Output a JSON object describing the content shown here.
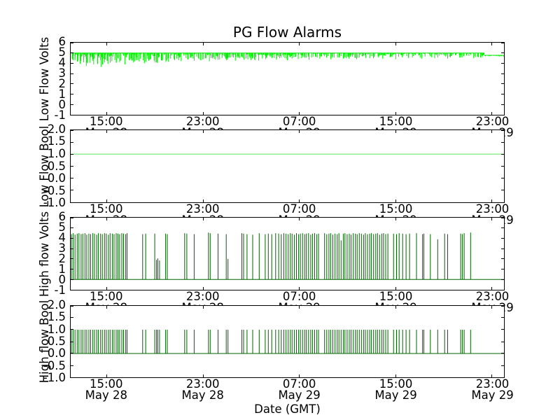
{
  "title": "PG Flow Alarms",
  "xlabel": "Date (GMT)",
  "colors": {
    "low_flow_volts": "#00ee00",
    "low_flow_bool": "#90ee90",
    "high_flow": "#006400",
    "frame": "#000000",
    "background": "#ffffff"
  },
  "xticks": {
    "pcts": [
      8.34,
      30.55,
      52.76,
      74.97,
      97.19
    ],
    "times": [
      "15:00",
      "23:00",
      "07:00",
      "15:00",
      "23:00"
    ],
    "dates": [
      "May 28",
      "May 28",
      "May 29",
      "May 29",
      "May 29"
    ]
  },
  "chart_data": [
    {
      "type": "line",
      "name": "low-flow-volts",
      "ylabel": "Low Flow Volts",
      "ylim": [
        -1,
        6
      ],
      "yticks": [
        "6",
        "5",
        "4",
        "3",
        "2",
        "1",
        "0",
        "-1"
      ],
      "color": "#00ee00",
      "kind": "noisy",
      "base": 5.0,
      "segments": [
        {
          "from": 0,
          "to": 2,
          "base": 5.0,
          "min": 4.2,
          "n": 14
        },
        {
          "from": 2,
          "to": 8,
          "base": 5.0,
          "min": 3.8,
          "n": 40
        },
        {
          "from": 8,
          "to": 25,
          "base": 5.0,
          "min": 4.05,
          "n": 110
        },
        {
          "from": 25,
          "to": 45,
          "base": 5.0,
          "min": 4.25,
          "n": 120
        },
        {
          "from": 45,
          "to": 70,
          "base": 5.0,
          "min": 4.45,
          "n": 150
        },
        {
          "from": 70,
          "to": 95.5,
          "base": 5.0,
          "min": 4.55,
          "n": 150
        },
        {
          "from": 95.5,
          "to": 100,
          "base": 4.78,
          "min": 4.66,
          "n": 26
        }
      ],
      "deep_dips": [
        [
          0.5,
          4.35
        ],
        [
          1.0,
          4.3
        ],
        [
          1.5,
          4.15
        ],
        [
          2.2,
          3.95
        ],
        [
          3.0,
          4.1
        ],
        [
          3.6,
          3.75
        ],
        [
          4.4,
          4.05
        ],
        [
          5.3,
          3.9
        ],
        [
          6.2,
          4.2
        ],
        [
          7.0,
          3.65
        ],
        [
          7.8,
          4.1
        ],
        [
          8.6,
          3.95
        ],
        [
          9.5,
          4.2
        ],
        [
          10.5,
          4.05
        ],
        [
          11.5,
          4.25
        ],
        [
          12.5,
          3.9
        ],
        [
          13.5,
          4.3
        ],
        [
          14.5,
          4.1
        ],
        [
          15.8,
          4.2
        ],
        [
          17.0,
          4.0
        ],
        [
          18.0,
          4.25
        ],
        [
          19.5,
          4.1
        ],
        [
          21.0,
          4.3
        ],
        [
          22.5,
          4.15
        ],
        [
          24.0,
          4.3
        ],
        [
          25.5,
          4.2
        ],
        [
          27.0,
          4.35
        ],
        [
          28.5,
          4.25
        ],
        [
          30.0,
          4.3
        ],
        [
          32.0,
          4.2
        ],
        [
          34.0,
          4.35
        ],
        [
          36.0,
          4.3
        ],
        [
          38.0,
          4.25
        ],
        [
          40.0,
          4.35
        ],
        [
          42.5,
          4.3
        ],
        [
          45.0,
          4.4
        ],
        [
          47.5,
          4.35
        ],
        [
          50.0,
          4.3
        ],
        [
          52.5,
          4.4
        ],
        [
          55.0,
          4.35
        ],
        [
          57.5,
          4.45
        ],
        [
          60.0,
          4.4
        ],
        [
          63.0,
          4.45
        ],
        [
          66.0,
          4.4
        ],
        [
          69.0,
          4.5
        ],
        [
          72.0,
          4.45
        ],
        [
          75.0,
          4.4
        ],
        [
          78.0,
          4.5
        ],
        [
          81.0,
          4.45
        ],
        [
          84.0,
          4.5
        ],
        [
          87.0,
          4.45
        ],
        [
          90.0,
          4.55
        ],
        [
          93.0,
          4.5
        ],
        [
          95.0,
          4.6
        ]
      ]
    },
    {
      "type": "line",
      "name": "low-flow-bool",
      "ylabel": "Low Flow Bool",
      "ylim": [
        -1,
        2
      ],
      "yticks": [
        "2.0",
        "1.5",
        "1.0",
        "0.5",
        "0.0",
        "-0.5",
        "-1.0"
      ],
      "color": "#90ee90",
      "kind": "hline",
      "value": 1.0,
      "lw": 1.5
    },
    {
      "type": "line",
      "name": "high-flow-volts",
      "ylabel": "High flow Volts",
      "ylim": [
        -1,
        6
      ],
      "yticks": [
        "6",
        "5",
        "4",
        "3",
        "2",
        "1",
        "0",
        "-1"
      ],
      "color": "#006400",
      "kind": "spikes",
      "baseline": 0,
      "spikes": [
        [
          0.2,
          4.4
        ],
        [
          0.6,
          4.5
        ],
        [
          1.0,
          4.35
        ],
        [
          1.5,
          4.45
        ],
        [
          1.9,
          4.5
        ],
        [
          2.4,
          4.4
        ],
        [
          2.8,
          4.45
        ],
        [
          3.3,
          4.5
        ],
        [
          3.7,
          4.35
        ],
        [
          4.2,
          4.45
        ],
        [
          4.6,
          4.4
        ],
        [
          5.1,
          4.5
        ],
        [
          5.5,
          4.45
        ],
        [
          6.0,
          4.35
        ],
        [
          6.4,
          4.5
        ],
        [
          6.9,
          4.45
        ],
        [
          7.3,
          4.4
        ],
        [
          7.8,
          4.5
        ],
        [
          8.2,
          4.45
        ],
        [
          8.7,
          4.35
        ],
        [
          9.1,
          4.5
        ],
        [
          9.6,
          4.45
        ],
        [
          10.0,
          4.4
        ],
        [
          10.5,
          4.5
        ],
        [
          10.9,
          4.45
        ],
        [
          11.3,
          4.4
        ],
        [
          11.8,
          4.5
        ],
        [
          12.2,
          4.45
        ],
        [
          12.7,
          4.4
        ],
        [
          13.0,
          4.5
        ],
        [
          16.6,
          4.4
        ],
        [
          17.3,
          4.45
        ],
        [
          19.4,
          4.45
        ],
        [
          19.8,
          1.9
        ],
        [
          20.1,
          2.05
        ],
        [
          20.5,
          1.85
        ],
        [
          21.9,
          4.45
        ],
        [
          22.3,
          4.4
        ],
        [
          26.3,
          4.5
        ],
        [
          26.8,
          4.45
        ],
        [
          28.5,
          4.4
        ],
        [
          31.8,
          4.55
        ],
        [
          32.2,
          4.5
        ],
        [
          34.0,
          4.45
        ],
        [
          35.9,
          4.4
        ],
        [
          36.3,
          2.0
        ],
        [
          39.5,
          4.5
        ],
        [
          39.9,
          4.45
        ],
        [
          40.7,
          4.4
        ],
        [
          42.0,
          4.35
        ],
        [
          43.5,
          4.5
        ],
        [
          44.9,
          4.4
        ],
        [
          45.6,
          4.45
        ],
        [
          46.4,
          4.4
        ],
        [
          47.3,
          4.5
        ],
        [
          48.0,
          4.45
        ],
        [
          48.6,
          4.4
        ],
        [
          49.2,
          4.5
        ],
        [
          49.7,
          4.45
        ],
        [
          50.2,
          4.4
        ],
        [
          50.7,
          4.5
        ],
        [
          51.1,
          4.45
        ],
        [
          51.6,
          4.35
        ],
        [
          52.1,
          4.5
        ],
        [
          52.6,
          4.4
        ],
        [
          53.0,
          4.45
        ],
        [
          53.5,
          4.5
        ],
        [
          54.0,
          4.4
        ],
        [
          54.4,
          4.45
        ],
        [
          54.9,
          4.5
        ],
        [
          55.4,
          4.35
        ],
        [
          55.8,
          4.45
        ],
        [
          56.3,
          4.5
        ],
        [
          56.8,
          4.4
        ],
        [
          57.2,
          4.45
        ],
        [
          58.6,
          4.5
        ],
        [
          59.1,
          4.4
        ],
        [
          59.6,
          4.45
        ],
        [
          60.0,
          4.5
        ],
        [
          60.5,
          4.35
        ],
        [
          61.0,
          4.45
        ],
        [
          61.5,
          4.4
        ],
        [
          61.9,
          4.5
        ],
        [
          62.4,
          3.8
        ],
        [
          62.9,
          4.45
        ],
        [
          63.3,
          4.5
        ],
        [
          63.8,
          4.4
        ],
        [
          64.3,
          4.45
        ],
        [
          64.7,
          4.35
        ],
        [
          65.2,
          4.5
        ],
        [
          65.7,
          4.45
        ],
        [
          66.1,
          4.4
        ],
        [
          66.6,
          4.5
        ],
        [
          67.1,
          4.45
        ],
        [
          67.6,
          4.35
        ],
        [
          68.0,
          4.5
        ],
        [
          68.5,
          4.4
        ],
        [
          69.0,
          4.45
        ],
        [
          69.4,
          4.5
        ],
        [
          69.9,
          4.4
        ],
        [
          70.4,
          4.45
        ],
        [
          70.8,
          4.5
        ],
        [
          71.3,
          4.35
        ],
        [
          71.8,
          4.45
        ],
        [
          72.2,
          4.5
        ],
        [
          72.7,
          4.4
        ],
        [
          73.2,
          4.45
        ],
        [
          74.5,
          4.45
        ],
        [
          75.2,
          4.4
        ],
        [
          75.8,
          4.5
        ],
        [
          76.6,
          4.45
        ],
        [
          77.4,
          4.4
        ],
        [
          78.2,
          4.45
        ],
        [
          79.8,
          4.5
        ],
        [
          81.2,
          4.4
        ],
        [
          81.5,
          4.45
        ],
        [
          83.0,
          4.4
        ],
        [
          84.7,
          3.9
        ],
        [
          86.3,
          4.45
        ],
        [
          87.0,
          4.4
        ],
        [
          90.0,
          4.45
        ],
        [
          90.4,
          4.4
        ],
        [
          90.8,
          4.5
        ],
        [
          92.3,
          4.55
        ]
      ]
    },
    {
      "type": "line",
      "name": "high-flow-bool",
      "ylabel": "High flow Bool",
      "ylim": [
        -1,
        2
      ],
      "yticks": [
        "2.0",
        "1.5",
        "1.0",
        "0.5",
        "0.0",
        "-0.5",
        "-1.0"
      ],
      "color": "#006400",
      "kind": "spikes-ref",
      "ref": 2,
      "baseline": 0,
      "height": 1.0
    }
  ]
}
